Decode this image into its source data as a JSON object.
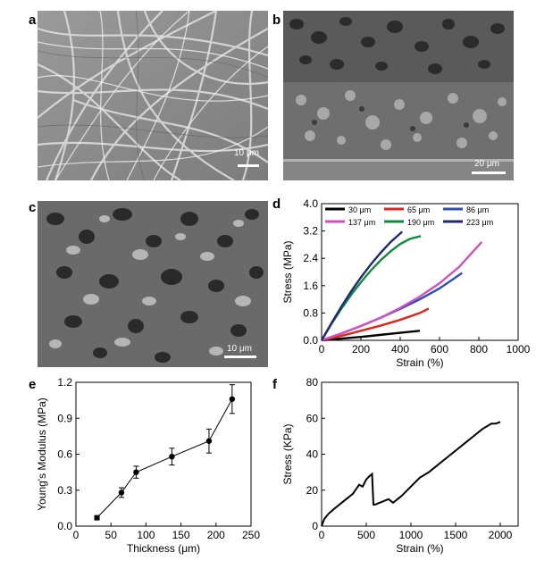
{
  "panels": {
    "a": {
      "letter": "a",
      "scalebar": "10 μm"
    },
    "b": {
      "letter": "b",
      "scalebar": "20 μm"
    },
    "c": {
      "letter": "c",
      "scalebar": "10 μm"
    }
  },
  "chart_data": [
    {
      "panel": "d",
      "type": "line",
      "xlabel": "Strain (%)",
      "ylabel": "Stress (MPa)",
      "xlim": [
        0,
        1000
      ],
      "ylim": [
        0,
        4.0
      ],
      "xticks": [
        "0",
        "200",
        "400",
        "600",
        "800",
        "1000"
      ],
      "yticks": [
        "0.0",
        "0.8",
        "1.6",
        "2.4",
        "3.2",
        "4.0"
      ],
      "ytick_values": [
        0,
        0.8,
        1.6,
        2.4,
        3.2,
        4.0
      ],
      "xtick_values": [
        0,
        200,
        400,
        600,
        800,
        1000
      ],
      "legend_position": "top",
      "series": [
        {
          "name": "30 μm",
          "color": "#000000",
          "x": [
            0,
            100,
            200,
            300,
            400,
            500
          ],
          "y": [
            0,
            0.05,
            0.1,
            0.16,
            0.22,
            0.28
          ]
        },
        {
          "name": "65 μm",
          "color": "#e2231a",
          "x": [
            0,
            100,
            200,
            300,
            400,
            500,
            545
          ],
          "y": [
            0,
            0.13,
            0.28,
            0.43,
            0.6,
            0.8,
            0.93
          ]
        },
        {
          "name": "86 μm",
          "color": "#2b4fb5",
          "x": [
            0,
            100,
            200,
            300,
            400,
            500,
            600,
            715
          ],
          "y": [
            0,
            0.2,
            0.42,
            0.66,
            0.92,
            1.2,
            1.52,
            1.97
          ]
        },
        {
          "name": "137 μm",
          "color": "#d24fbf",
          "x": [
            0,
            100,
            200,
            300,
            400,
            500,
            600,
            700,
            815
          ],
          "y": [
            0,
            0.2,
            0.42,
            0.66,
            0.95,
            1.28,
            1.67,
            2.15,
            2.88
          ]
        },
        {
          "name": "190 μm",
          "color": "#138a3c",
          "x": [
            0,
            50,
            100,
            150,
            200,
            250,
            300,
            350,
            400,
            450,
            505
          ],
          "y": [
            0,
            0.48,
            0.92,
            1.33,
            1.7,
            2.04,
            2.34,
            2.6,
            2.82,
            2.97,
            3.05
          ]
        },
        {
          "name": "223 μm",
          "color": "#1f2a6e",
          "x": [
            0,
            50,
            100,
            150,
            200,
            250,
            300,
            350,
            410
          ],
          "y": [
            0,
            0.5,
            0.98,
            1.43,
            1.84,
            2.22,
            2.56,
            2.87,
            3.18
          ]
        }
      ]
    },
    {
      "panel": "e",
      "type": "line",
      "xlabel": "Thickness (μm)",
      "ylabel": "Young's Modulus (MPa)",
      "xlim": [
        0,
        250
      ],
      "ylim": [
        0,
        1.2
      ],
      "xticks": [
        "0",
        "50",
        "100",
        "150",
        "200",
        "250"
      ],
      "xtick_values": [
        0,
        50,
        100,
        150,
        200,
        250
      ],
      "yticks": [
        "0.0",
        "0.3",
        "0.6",
        "0.9",
        "1.2"
      ],
      "ytick_values": [
        0,
        0.3,
        0.6,
        0.9,
        1.2
      ],
      "series": [
        {
          "x": [
            30,
            65,
            86,
            137,
            190,
            223
          ],
          "y": [
            0.07,
            0.28,
            0.45,
            0.58,
            0.71,
            1.06
          ],
          "err": [
            0.01,
            0.04,
            0.05,
            0.07,
            0.1,
            0.12
          ]
        }
      ]
    },
    {
      "panel": "f",
      "type": "line",
      "xlabel": "Strain (%)",
      "ylabel": "Stress (KPa)",
      "xlim": [
        0,
        2200
      ],
      "ylim": [
        0,
        80
      ],
      "xticks": [
        "0",
        "500",
        "1000",
        "1500",
        "2000"
      ],
      "xtick_values": [
        0,
        500,
        1000,
        1500,
        2000
      ],
      "yticks": [
        "0",
        "20",
        "40",
        "60",
        "80"
      ],
      "ytick_values": [
        0,
        20,
        40,
        60,
        80
      ],
      "series": [
        {
          "x": [
            0,
            30,
            80,
            150,
            250,
            350,
            420,
            460,
            500,
            540,
            565,
            580,
            600,
            650,
            700,
            750,
            800,
            850,
            900,
            1000,
            1100,
            1200,
            1300,
            1400,
            1500,
            1600,
            1700,
            1800,
            1900,
            1950,
            2000
          ],
          "y": [
            0,
            4,
            7,
            10,
            14,
            18,
            23,
            22,
            26,
            28,
            29,
            12,
            12,
            13,
            14,
            15,
            13,
            15,
            17,
            22,
            27,
            30,
            34,
            38,
            42,
            46,
            50,
            54,
            57,
            57,
            58
          ]
        }
      ]
    }
  ]
}
